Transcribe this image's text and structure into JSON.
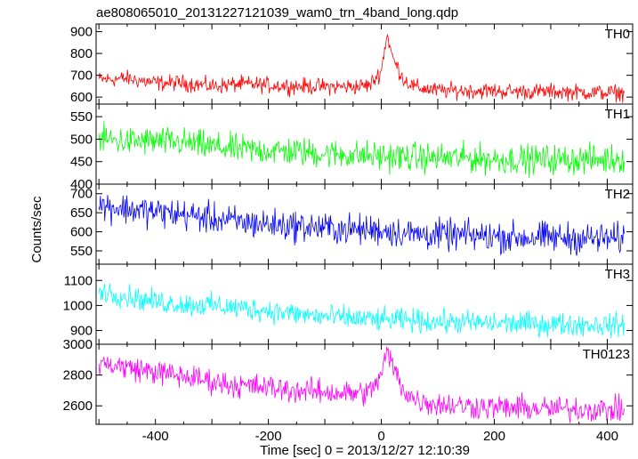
{
  "chart_data": {
    "type": "line",
    "title": "ae808065010_20131227121039_wam0_trn_4band_long.qdp",
    "xlabel": "Time [sec] 0 = 2013/12/27 12:10:39",
    "ylabel": "Counts/sec",
    "xlim": [
      -505,
      445
    ],
    "x_ticks": [
      -400,
      -200,
      0,
      200,
      400
    ],
    "grid": false,
    "panels": [
      {
        "name": "TH0",
        "color": "#ff0000",
        "ylim": [
          568,
          935
        ],
        "y_ticks": [
          600,
          700,
          800,
          900
        ],
        "series": {
          "x": [
            -500,
            -450,
            -400,
            -350,
            -300,
            -250,
            -200,
            -150,
            -100,
            -50,
            -20,
            0,
            10,
            20,
            40,
            60,
            100,
            150,
            200,
            250,
            300,
            350,
            400,
            430
          ],
          "y": [
            680,
            685,
            665,
            665,
            650,
            660,
            655,
            650,
            648,
            648,
            655,
            720,
            890,
            780,
            680,
            645,
            630,
            630,
            628,
            625,
            625,
            622,
            620,
            620
          ],
          "noise": 32
        }
      },
      {
        "name": "TH1",
        "color": "#00ff00",
        "ylim": [
          400,
          578
        ],
        "y_ticks": [
          400,
          450,
          500,
          550
        ],
        "series": {
          "x": [
            -500,
            -450,
            -400,
            -350,
            -300,
            -250,
            -200,
            -150,
            -100,
            -50,
            0,
            50,
            100,
            150,
            200,
            250,
            300,
            350,
            400,
            430
          ],
          "y": [
            500,
            495,
            495,
            492,
            483,
            477,
            475,
            472,
            468,
            465,
            462,
            460,
            458,
            458,
            455,
            455,
            455,
            455,
            455,
            458
          ],
          "noise": 28
        }
      },
      {
        "name": "TH2",
        "color": "#0000ff",
        "ylim": [
          515,
          725
        ],
        "y_ticks": [
          550,
          600,
          650,
          700
        ],
        "series": {
          "x": [
            -500,
            -450,
            -400,
            -350,
            -300,
            -250,
            -200,
            -150,
            -100,
            -50,
            0,
            50,
            100,
            150,
            200,
            250,
            300,
            350,
            400,
            430
          ],
          "y": [
            670,
            660,
            652,
            645,
            635,
            625,
            620,
            615,
            610,
            605,
            605,
            595,
            592,
            590,
            588,
            585,
            585,
            583,
            582,
            582
          ],
          "noise": 35
        }
      },
      {
        "name": "TH3",
        "color": "#00ffff",
        "ylim": [
          845,
          1165
        ],
        "y_ticks": [
          900,
          1000,
          1100
        ],
        "series": {
          "x": [
            -500,
            -450,
            -400,
            -350,
            -300,
            -250,
            -200,
            -150,
            -100,
            -50,
            0,
            50,
            100,
            150,
            200,
            250,
            300,
            350,
            400,
            430
          ],
          "y": [
            1060,
            1035,
            1015,
            1005,
            1000,
            990,
            980,
            965,
            955,
            948,
            942,
            940,
            935,
            932,
            928,
            928,
            925,
            925,
            922,
            920
          ],
          "noise": 40
        }
      },
      {
        "name": "TH0123",
        "color": "#ff00ff",
        "ylim": [
          2480,
          3000
        ],
        "y_ticks": [
          2600,
          2800,
          3000
        ],
        "series": {
          "x": [
            -500,
            -450,
            -400,
            -350,
            -300,
            -250,
            -200,
            -150,
            -100,
            -50,
            -20,
            0,
            10,
            25,
            40,
            60,
            100,
            150,
            200,
            250,
            300,
            350,
            400,
            430
          ],
          "y": [
            2880,
            2850,
            2820,
            2790,
            2760,
            2730,
            2720,
            2700,
            2690,
            2680,
            2690,
            2800,
            2950,
            2820,
            2700,
            2640,
            2610,
            2600,
            2590,
            2585,
            2580,
            2580,
            2575,
            2575
          ],
          "noise": 70
        }
      }
    ]
  }
}
